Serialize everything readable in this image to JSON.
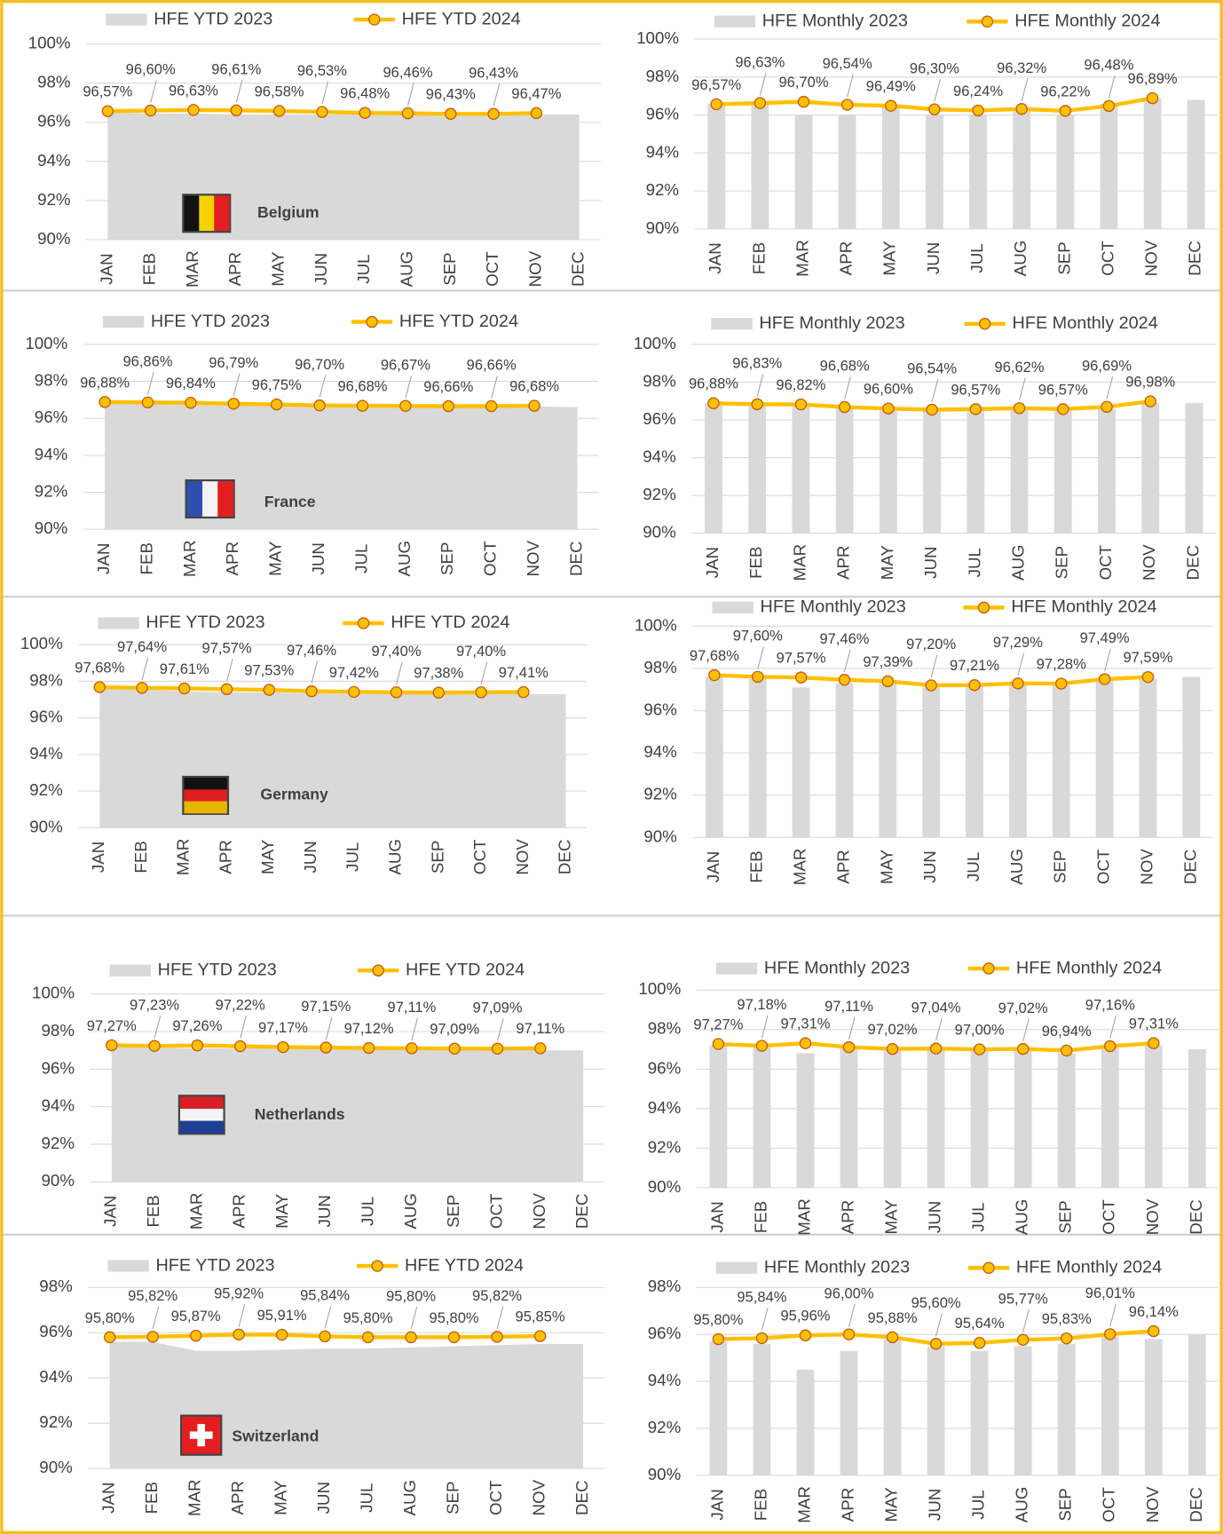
{
  "chart_data": [
    {
      "type": "area-line",
      "label": "Belgium",
      "categories": [
        "JAN",
        "FEB",
        "MAR",
        "APR",
        "MAY",
        "JUN",
        "JUL",
        "AUG",
        "SEP",
        "OCT",
        "NOV",
        "DEC"
      ],
      "series": [
        {
          "name": "HFE YTD 2023",
          "color": "#d9d9d9",
          "values": [
            96.5,
            96.45,
            96.45,
            96.4,
            96.4,
            96.4,
            96.4,
            96.4,
            96.4,
            96.4,
            96.4,
            96.4
          ]
        },
        {
          "name": "HFE YTD 2024",
          "color": "#ffc000",
          "values": [
            96.57,
            96.6,
            96.63,
            96.61,
            96.58,
            96.53,
            96.48,
            96.46,
            96.43,
            96.43,
            96.47,
            null
          ],
          "value_labels": [
            "96,57%",
            "96,60%",
            "96,63%",
            "96,61%",
            "96,58%",
            "96,53%",
            "96,48%",
            "96,46%",
            "96,43%",
            "96,43%",
            "96,47%",
            null
          ]
        }
      ],
      "ylim": [
        90,
        100
      ],
      "yticks": [
        {
          "value": 90,
          "label": "90%"
        },
        {
          "value": 92,
          "label": "92%"
        },
        {
          "value": 94,
          "label": "94%"
        },
        {
          "value": 96,
          "label": "96%"
        },
        {
          "value": 98,
          "label": "98%"
        },
        {
          "value": 100,
          "label": "100%"
        }
      ]
    },
    {
      "type": "bar-line",
      "categories": [
        "JAN",
        "FEB",
        "MAR",
        "APR",
        "MAY",
        "JUN",
        "JUL",
        "AUG",
        "SEP",
        "OCT",
        "NOV",
        "DEC"
      ],
      "series": [
        {
          "name": "HFE Monthly 2023",
          "color": "#d9d9d9",
          "values": [
            96.6,
            96.6,
            96.0,
            96.0,
            96.4,
            96.0,
            96.0,
            96.2,
            96.0,
            96.6,
            96.9,
            96.8
          ]
        },
        {
          "name": "HFE Monthly 2024",
          "color": "#ffc000",
          "values": [
            96.57,
            96.63,
            96.7,
            96.54,
            96.49,
            96.3,
            96.24,
            96.32,
            96.22,
            96.48,
            96.89,
            null
          ],
          "value_labels": [
            "96,57%",
            "96,63%",
            "96,70%",
            "96,54%",
            "96,49%",
            "96,30%",
            "96,24%",
            "96,32%",
            "96,22%",
            "96,48%",
            "96,89%",
            null
          ]
        }
      ],
      "ylim": [
        90,
        100
      ],
      "yticks": [
        {
          "value": 90,
          "label": "90%"
        },
        {
          "value": 92,
          "label": "92%"
        },
        {
          "value": 94,
          "label": "94%"
        },
        {
          "value": 96,
          "label": "96%"
        },
        {
          "value": 98,
          "label": "98%"
        },
        {
          "value": 100,
          "label": "100%"
        }
      ]
    },
    {
      "type": "area-line",
      "label": "France",
      "categories": [
        "JAN",
        "FEB",
        "MAR",
        "APR",
        "MAY",
        "JUN",
        "JUL",
        "AUG",
        "SEP",
        "OCT",
        "NOV",
        "DEC"
      ],
      "series": [
        {
          "name": "HFE YTD 2023",
          "color": "#d9d9d9",
          "values": [
            96.8,
            96.8,
            96.75,
            96.7,
            96.7,
            96.65,
            96.65,
            96.65,
            96.65,
            96.65,
            96.65,
            96.6
          ]
        },
        {
          "name": "HFE YTD 2024",
          "color": "#ffc000",
          "values": [
            96.88,
            96.86,
            96.84,
            96.79,
            96.75,
            96.7,
            96.68,
            96.67,
            96.66,
            96.66,
            96.68,
            null
          ],
          "value_labels": [
            "96,88%",
            "96,86%",
            "96,84%",
            "96,79%",
            "96,75%",
            "96,70%",
            "96,68%",
            "96,67%",
            "96,66%",
            "96,66%",
            "96,68%",
            null
          ]
        }
      ],
      "ylim": [
        90,
        100
      ],
      "yticks": [
        {
          "value": 90,
          "label": "90%"
        },
        {
          "value": 92,
          "label": "92%"
        },
        {
          "value": 94,
          "label": "94%"
        },
        {
          "value": 96,
          "label": "96%"
        },
        {
          "value": 98,
          "label": "98%"
        },
        {
          "value": 100,
          "label": "100%"
        }
      ]
    },
    {
      "type": "bar-line",
      "categories": [
        "JAN",
        "FEB",
        "MAR",
        "APR",
        "MAY",
        "JUN",
        "JUL",
        "AUG",
        "SEP",
        "OCT",
        "NOV",
        "DEC"
      ],
      "series": [
        {
          "name": "HFE Monthly 2023",
          "color": "#d9d9d9",
          "values": [
            96.9,
            96.8,
            96.8,
            96.6,
            96.5,
            96.5,
            96.5,
            96.6,
            96.5,
            96.6,
            96.9,
            96.9
          ]
        },
        {
          "name": "HFE Monthly 2024",
          "color": "#ffc000",
          "values": [
            96.88,
            96.83,
            96.82,
            96.68,
            96.6,
            96.54,
            96.57,
            96.62,
            96.57,
            96.69,
            96.98,
            null
          ],
          "value_labels": [
            "96,88%",
            "96,83%",
            "96,82%",
            "96,68%",
            "96,60%",
            "96,54%",
            "96,57%",
            "96,62%",
            "96,57%",
            "96,69%",
            "96,98%",
            null
          ]
        }
      ],
      "ylim": [
        90,
        100
      ],
      "yticks": [
        {
          "value": 90,
          "label": "90%"
        },
        {
          "value": 92,
          "label": "92%"
        },
        {
          "value": 94,
          "label": "94%"
        },
        {
          "value": 96,
          "label": "96%"
        },
        {
          "value": 98,
          "label": "98%"
        },
        {
          "value": 100,
          "label": "100%"
        }
      ]
    },
    {
      "type": "area-line",
      "label": "Germany",
      "categories": [
        "JAN",
        "FEB",
        "MAR",
        "APR",
        "MAY",
        "JUN",
        "JUL",
        "AUG",
        "SEP",
        "OCT",
        "NOV",
        "DEC"
      ],
      "series": [
        {
          "name": "HFE YTD 2023",
          "color": "#d9d9d9",
          "values": [
            97.6,
            97.55,
            97.45,
            97.4,
            97.4,
            97.35,
            97.3,
            97.3,
            97.3,
            97.3,
            97.3,
            97.3
          ]
        },
        {
          "name": "HFE YTD 2024",
          "color": "#ffc000",
          "values": [
            97.68,
            97.64,
            97.61,
            97.57,
            97.53,
            97.46,
            97.42,
            97.4,
            97.38,
            97.4,
            97.41,
            null
          ],
          "value_labels": [
            "97,68%",
            "97,64%",
            "97,61%",
            "97,57%",
            "97,53%",
            "97,46%",
            "97,42%",
            "97,40%",
            "97,38%",
            "97,40%",
            "97,41%",
            null
          ]
        }
      ],
      "ylim": [
        90,
        100
      ],
      "yticks": [
        {
          "value": 90,
          "label": "90%"
        },
        {
          "value": 92,
          "label": "92%"
        },
        {
          "value": 94,
          "label": "94%"
        },
        {
          "value": 96,
          "label": "96%"
        },
        {
          "value": 98,
          "label": "98%"
        },
        {
          "value": 100,
          "label": "100%"
        }
      ]
    },
    {
      "type": "bar-line",
      "categories": [
        "JAN",
        "FEB",
        "MAR",
        "APR",
        "MAY",
        "JUN",
        "JUL",
        "AUG",
        "SEP",
        "OCT",
        "NOV",
        "DEC"
      ],
      "series": [
        {
          "name": "HFE Monthly 2023",
          "color": "#d9d9d9",
          "values": [
            97.6,
            97.5,
            97.1,
            97.3,
            97.3,
            97.1,
            97.2,
            97.2,
            97.2,
            97.4,
            97.5,
            97.6
          ]
        },
        {
          "name": "HFE Monthly 2024",
          "color": "#ffc000",
          "values": [
            97.68,
            97.6,
            97.57,
            97.46,
            97.39,
            97.2,
            97.21,
            97.29,
            97.28,
            97.49,
            97.59,
            null
          ],
          "value_labels": [
            "97,68%",
            "97,60%",
            "97,57%",
            "97,46%",
            "97,39%",
            "97,20%",
            "97,21%",
            "97,29%",
            "97,28%",
            "97,49%",
            "97,59%",
            null
          ]
        }
      ],
      "ylim": [
        90,
        100
      ],
      "yticks": [
        {
          "value": 90,
          "label": "90%"
        },
        {
          "value": 92,
          "label": "92%"
        },
        {
          "value": 94,
          "label": "94%"
        },
        {
          "value": 96,
          "label": "96%"
        },
        {
          "value": 98,
          "label": "98%"
        },
        {
          "value": 100,
          "label": "100%"
        }
      ]
    },
    {
      "type": "area-line",
      "label": "Netherlands",
      "categories": [
        "JAN",
        "FEB",
        "MAR",
        "APR",
        "MAY",
        "JUN",
        "JUL",
        "AUG",
        "SEP",
        "OCT",
        "NOV",
        "DEC"
      ],
      "series": [
        {
          "name": "HFE YTD 2023",
          "color": "#d9d9d9",
          "values": [
            97.2,
            97.15,
            97.1,
            97.1,
            97.1,
            97.1,
            97.05,
            97.05,
            97.05,
            97.05,
            97.0,
            97.0
          ]
        },
        {
          "name": "HFE YTD 2024",
          "color": "#ffc000",
          "values": [
            97.27,
            97.23,
            97.26,
            97.22,
            97.17,
            97.15,
            97.12,
            97.11,
            97.09,
            97.09,
            97.11,
            null
          ],
          "value_labels": [
            "97,27%",
            "97,23%",
            "97,26%",
            "97,22%",
            "97,17%",
            "97,15%",
            "97,12%",
            "97,11%",
            "97,09%",
            "97,09%",
            "97,11%",
            null
          ]
        }
      ],
      "ylim": [
        90,
        100
      ],
      "yticks": [
        {
          "value": 90,
          "label": "90%"
        },
        {
          "value": 92,
          "label": "92%"
        },
        {
          "value": 94,
          "label": "94%"
        },
        {
          "value": 96,
          "label": "96%"
        },
        {
          "value": 98,
          "label": "98%"
        },
        {
          "value": 100,
          "label": "100%"
        }
      ]
    },
    {
      "type": "bar-line",
      "categories": [
        "JAN",
        "FEB",
        "MAR",
        "APR",
        "MAY",
        "JUN",
        "JUL",
        "AUG",
        "SEP",
        "OCT",
        "NOV",
        "DEC"
      ],
      "series": [
        {
          "name": "HFE Monthly 2023",
          "color": "#d9d9d9",
          "values": [
            97.2,
            97.1,
            96.8,
            97.1,
            97.0,
            97.0,
            97.0,
            97.0,
            96.8,
            97.1,
            97.2,
            97.0
          ]
        },
        {
          "name": "HFE Monthly 2024",
          "color": "#ffc000",
          "values": [
            97.27,
            97.18,
            97.31,
            97.11,
            97.02,
            97.04,
            97.0,
            97.02,
            96.94,
            97.16,
            97.31,
            null
          ],
          "value_labels": [
            "97,27%",
            "97,18%",
            "97,31%",
            "97,11%",
            "97,02%",
            "97,04%",
            "97,00%",
            "97,02%",
            "96,94%",
            "97,16%",
            "97,31%",
            null
          ]
        }
      ],
      "ylim": [
        90,
        100
      ],
      "yticks": [
        {
          "value": 90,
          "label": "90%"
        },
        {
          "value": 92,
          "label": "92%"
        },
        {
          "value": 94,
          "label": "94%"
        },
        {
          "value": 96,
          "label": "96%"
        },
        {
          "value": 98,
          "label": "98%"
        },
        {
          "value": 100,
          "label": "100%"
        }
      ]
    },
    {
      "type": "area-line",
      "label": "Switzerland",
      "categories": [
        "JAN",
        "FEB",
        "MAR",
        "APR",
        "MAY",
        "JUN",
        "JUL",
        "AUG",
        "SEP",
        "OCT",
        "NOV",
        "DEC"
      ],
      "series": [
        {
          "name": "HFE YTD 2023",
          "color": "#d9d9d9",
          "values": [
            95.6,
            95.6,
            95.2,
            95.2,
            95.25,
            95.3,
            95.3,
            95.35,
            95.4,
            95.45,
            95.5,
            95.5
          ]
        },
        {
          "name": "HFE YTD 2024",
          "color": "#ffc000",
          "values": [
            95.8,
            95.82,
            95.87,
            95.92,
            95.91,
            95.84,
            95.8,
            95.8,
            95.8,
            95.82,
            95.85,
            null
          ],
          "value_labels": [
            "95,80%",
            "95,82%",
            "95,87%",
            "95,92%",
            "95,91%",
            "95,84%",
            "95,80%",
            "95,80%",
            "95,80%",
            "95,82%",
            "95,85%",
            null
          ]
        }
      ],
      "ylim": [
        90,
        98
      ],
      "yticks": [
        {
          "value": 90,
          "label": "90%"
        },
        {
          "value": 92,
          "label": "92%"
        },
        {
          "value": 94,
          "label": "94%"
        },
        {
          "value": 96,
          "label": "96%"
        },
        {
          "value": 98,
          "label": "98%"
        }
      ]
    },
    {
      "type": "bar-line",
      "categories": [
        "JAN",
        "FEB",
        "MAR",
        "APR",
        "MAY",
        "JUN",
        "JUL",
        "AUG",
        "SEP",
        "OCT",
        "NOV",
        "DEC"
      ],
      "series": [
        {
          "name": "HFE Monthly 2023",
          "color": "#d9d9d9",
          "values": [
            95.7,
            95.6,
            94.5,
            95.3,
            95.8,
            95.5,
            95.3,
            95.5,
            95.6,
            95.9,
            95.8,
            96.0
          ]
        },
        {
          "name": "HFE Monthly 2024",
          "color": "#ffc000",
          "values": [
            95.8,
            95.84,
            95.96,
            96.0,
            95.88,
            95.6,
            95.64,
            95.77,
            95.83,
            96.01,
            96.14,
            null
          ],
          "value_labels": [
            "95,80%",
            "95,84%",
            "95,96%",
            "96,00%",
            "95,88%",
            "95,60%",
            "95,64%",
            "95,77%",
            "95,83%",
            "96,01%",
            "96,14%",
            null
          ]
        }
      ],
      "ylim": [
        90,
        98
      ],
      "yticks": [
        {
          "value": 90,
          "label": "90%"
        },
        {
          "value": 92,
          "label": "92%"
        },
        {
          "value": 94,
          "label": "94%"
        },
        {
          "value": 96,
          "label": "96%"
        },
        {
          "value": 98,
          "label": "98%"
        }
      ]
    }
  ]
}
